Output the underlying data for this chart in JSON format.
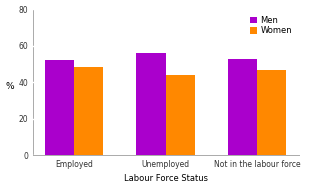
{
  "categories": [
    "Employed",
    "Unemployed",
    "Not in the labour force"
  ],
  "men_values": [
    52,
    56,
    52.5
  ],
  "women_values": [
    48,
    44,
    46.5
  ],
  "men_color": "#AA00CC",
  "women_color": "#FF8800",
  "xlabel": "Labour Force Status",
  "ylabel": "%",
  "ylim": [
    0,
    80
  ],
  "yticks": [
    0,
    20,
    40,
    60,
    80
  ],
  "legend_labels": [
    "Men",
    "Women"
  ],
  "bar_width": 0.32,
  "tick_fontsize": 5.5,
  "legend_fontsize": 6.0,
  "xlabel_fontsize": 6.0,
  "ylabel_fontsize": 6.5,
  "grid_color": "#FFFFFF",
  "bg_color": "#FFFFFF",
  "fig_color": "#FFFFFF",
  "x_tick_labels": [
    "Employed",
    "Unemployed",
    "Not in the labour force"
  ]
}
